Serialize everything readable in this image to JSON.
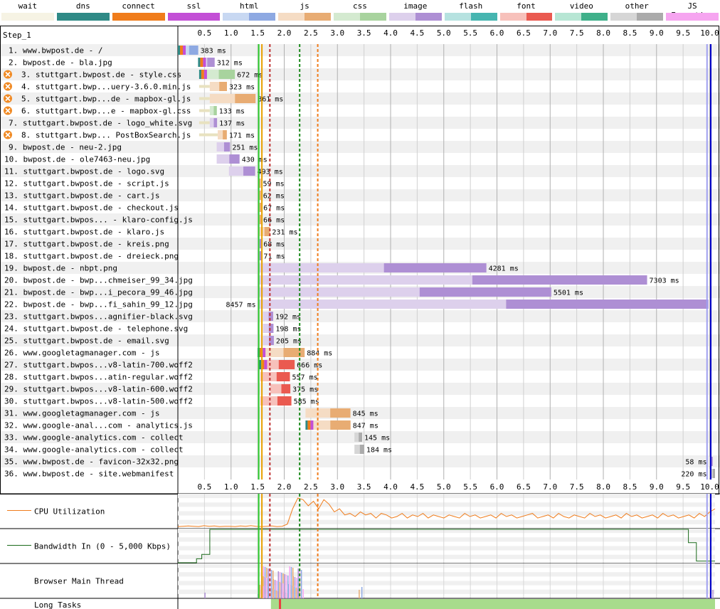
{
  "legend": [
    {
      "label": "wait",
      "light": "#f6f3e4",
      "dark": "#f6f3e4"
    },
    {
      "label": "dns",
      "light": "#2f8a86",
      "dark": "#2f8a86"
    },
    {
      "label": "connect",
      "light": "#f07c1b",
      "dark": "#f07c1b"
    },
    {
      "label": "ssl",
      "light": "#c34fd6",
      "dark": "#c34fd6"
    },
    {
      "label": "html",
      "light": "#c8d8f2",
      "dark": "#8ea9e2"
    },
    {
      "label": "js",
      "light": "#f5dcc4",
      "dark": "#e8ac73"
    },
    {
      "label": "css",
      "light": "#d4ead0",
      "dark": "#a8d39e"
    },
    {
      "label": "image",
      "light": "#ddd0ec",
      "dark": "#ae8fd4"
    },
    {
      "label": "flash",
      "light": "#b6e2e0",
      "dark": "#46b5b0"
    },
    {
      "label": "font",
      "light": "#f7c1bb",
      "dark": "#ea5a50"
    },
    {
      "label": "video",
      "light": "#b7e6d4",
      "dark": "#3fb08a"
    },
    {
      "label": "other",
      "light": "#d6d6d6",
      "dark": "#ababab"
    },
    {
      "label": "JS Execution",
      "light": "#f6a5f0",
      "dark": "#f6a5f0"
    }
  ],
  "chart_data": {
    "type": "waterfall",
    "step_label": "Step_1",
    "x_unit": "seconds",
    "xlim": [
      0,
      10.1
    ],
    "ticks": [
      "0.5",
      "1.0",
      "1.5",
      "2.0",
      "2.5",
      "3.0",
      "3.5",
      "4.0",
      "4.5",
      "5.0",
      "5.5",
      "6.0",
      "6.5",
      "7.0",
      "7.5",
      "8.0",
      "8.5",
      "9.0",
      "9.5",
      "10.0"
    ],
    "duration_suffix": " ms",
    "requests": [
      {
        "label": "1. www.bwpost.de - /",
        "type": "html",
        "start": 0.0,
        "wait": 0.0,
        "dur": 383,
        "warn": false
      },
      {
        "label": "2. bwpost.de - bla.jpg",
        "type": "image",
        "start": 0.38,
        "wait": 0.0,
        "dur": 312,
        "warn": false
      },
      {
        "label": "3. stuttgart.bwpost.de - style.css",
        "type": "css",
        "start": 0.4,
        "wait": 0.0,
        "dur": 672,
        "warn": true
      },
      {
        "label": "4. stuttgart.bwp...uery-3.6.0.min.js",
        "type": "js",
        "start": 0.4,
        "wait": 0.2,
        "dur": 323,
        "warn": true
      },
      {
        "label": "5. stuttgart.bwp...de - mapbox-gl.js",
        "type": "js",
        "start": 0.4,
        "wait": 0.2,
        "dur": 861,
        "warn": true
      },
      {
        "label": "6. stuttgart.bwp...e - mapbox-gl.css",
        "type": "css",
        "start": 0.4,
        "wait": 0.2,
        "dur": 133,
        "warn": true
      },
      {
        "label": "7. stuttgart.bwpost.de - logo_white.svg",
        "type": "image",
        "start": 0.4,
        "wait": 0.2,
        "dur": 137,
        "warn": false
      },
      {
        "label": "8. stuttgart.bwp... PostBoxSearch.js",
        "type": "js",
        "start": 0.4,
        "wait": 0.35,
        "dur": 171,
        "warn": true
      },
      {
        "label": "9. bwpost.de - neu-2.jpg",
        "type": "image",
        "start": 0.73,
        "wait": 0.0,
        "dur": 251,
        "warn": false
      },
      {
        "label": "10. bwpost.de - ole7463-neu.jpg",
        "type": "image",
        "start": 0.73,
        "wait": 0.0,
        "dur": 430,
        "warn": false
      },
      {
        "label": "11. stuttgart.bwpost.de - logo.svg",
        "type": "image",
        "start": 0.96,
        "wait": 0.0,
        "dur": 493,
        "warn": false
      },
      {
        "label": "12. stuttgart.bwpost.de - script.js",
        "type": "js",
        "start": 1.5,
        "wait": 0.0,
        "dur": 59,
        "warn": false
      },
      {
        "label": "13. stuttgart.bwpost.de - cart.js",
        "type": "js",
        "start": 1.5,
        "wait": 0.0,
        "dur": 62,
        "warn": false
      },
      {
        "label": "14. stuttgart.bwpost.de - checkout.js",
        "type": "js",
        "start": 1.5,
        "wait": 0.0,
        "dur": 67,
        "warn": false
      },
      {
        "label": "15. stuttgart.bwpos... - klaro-config.js",
        "type": "js",
        "start": 1.5,
        "wait": 0.0,
        "dur": 66,
        "warn": false
      },
      {
        "label": "16. stuttgart.bwpost.de - klaro.js",
        "type": "js",
        "start": 1.5,
        "wait": 0.0,
        "dur": 231,
        "warn": false
      },
      {
        "label": "17. stuttgart.bwpost.de - kreis.png",
        "type": "image",
        "start": 1.5,
        "wait": 0.0,
        "dur": 68,
        "warn": false
      },
      {
        "label": "18. stuttgart.bwpost.de - dreieck.png",
        "type": "image",
        "start": 1.5,
        "wait": 0.0,
        "dur": 71,
        "warn": false
      },
      {
        "label": "19. bwpost.de - nbpt.png",
        "type": "image",
        "start": 1.52,
        "wait": 0.0,
        "dur": 4281,
        "warn": false
      },
      {
        "label": "20. bwpost.de - bwp...chmeiser_99_34.jpg",
        "type": "image",
        "start": 1.52,
        "wait": 0.0,
        "dur": 7303,
        "warn": false
      },
      {
        "label": "21. bwpost.de - bwp...i_pecora_99_46.jpg",
        "type": "image",
        "start": 1.52,
        "wait": 0.0,
        "dur": 5501,
        "warn": false
      },
      {
        "label": "22. bwpost.de - bwp...fi_sahin_99_12.jpg",
        "type": "image",
        "start": 1.52,
        "wait": 0.0,
        "dur": 8457,
        "warn": false
      },
      {
        "label": "23. stuttgart.bwpos...agnifier-black.svg",
        "type": "image",
        "start": 1.6,
        "wait": 0.0,
        "dur": 192,
        "warn": false
      },
      {
        "label": "24. stuttgart.bwpost.de - telephone.svg",
        "type": "image",
        "start": 1.6,
        "wait": 0.0,
        "dur": 198,
        "warn": false
      },
      {
        "label": "25. stuttgart.bwpost.de - email.svg",
        "type": "image",
        "start": 1.6,
        "wait": 0.0,
        "dur": 205,
        "warn": false
      },
      {
        "label": "26. www.googletagmanager.com - js",
        "type": "js",
        "start": 1.5,
        "wait": 0.0,
        "dur": 884,
        "warn": false
      },
      {
        "label": "27. stuttgart.bwpos...v8-latin-700.woff2",
        "type": "font",
        "start": 1.53,
        "wait": 0.0,
        "dur": 666,
        "warn": false
      },
      {
        "label": "28. stuttgart.bwpos...atin-regular.woff2",
        "type": "font",
        "start": 1.55,
        "wait": 0.0,
        "dur": 557,
        "warn": false
      },
      {
        "label": "29. stuttgart.bwpos...v8-latin-600.woff2",
        "type": "font",
        "start": 1.74,
        "wait": 0.0,
        "dur": 375,
        "warn": false
      },
      {
        "label": "30. stuttgart.bwpos...v8-latin-500.woff2",
        "type": "font",
        "start": 1.55,
        "wait": 0.0,
        "dur": 585,
        "warn": false
      },
      {
        "label": "31. www.googletagmanager.com - js",
        "type": "js",
        "start": 2.4,
        "wait": 0.0,
        "dur": 845,
        "warn": false
      },
      {
        "label": "32. www.google-anal...com - analytics.js",
        "type": "js",
        "start": 2.4,
        "wait": 0.0,
        "dur": 847,
        "warn": false
      },
      {
        "label": "33. www.google-analytics.com - collect",
        "type": "other",
        "start": 3.32,
        "wait": 0.0,
        "dur": 145,
        "warn": false
      },
      {
        "label": "34. www.google-analytics.com - collect",
        "type": "other",
        "start": 3.32,
        "wait": 0.0,
        "dur": 184,
        "warn": false
      },
      {
        "label": "35. www.bwpost.de - favicon-32x32.png",
        "type": "image",
        "start": 10.0,
        "wait": 0.0,
        "dur": 58,
        "warn": false
      },
      {
        "label": "36. www.bwpost.de - site.webmanifest",
        "type": "other",
        "start": 10.0,
        "wait": 0.0,
        "dur": 220,
        "warn": false
      }
    ],
    "markers": [
      {
        "t": 1.52,
        "color": "#28c828",
        "dash": false
      },
      {
        "t": 1.58,
        "color": "#e8a000",
        "dash": false
      },
      {
        "t": 1.73,
        "color": "#c03030",
        "dash": true
      },
      {
        "t": 2.29,
        "color": "#1a8a1a",
        "dash": true
      },
      {
        "t": 2.63,
        "color": "#f07c1b",
        "dash": true
      },
      {
        "t": 10.02,
        "color": "#0000c8",
        "dash": false
      },
      {
        "t": 9.95,
        "color": "#a0a0f0",
        "dash": false
      }
    ],
    "cpu": {
      "label": "CPU Utilization",
      "values": [
        2,
        3,
        4,
        3,
        2,
        5,
        3,
        4,
        2,
        3,
        3,
        2,
        4,
        3,
        5,
        3,
        2,
        3,
        4,
        2,
        3,
        10,
        60,
        95,
        90,
        70,
        85,
        60,
        90,
        75,
        50,
        60,
        40,
        45,
        35,
        50,
        40,
        45,
        30,
        45,
        40,
        30,
        35,
        45,
        30,
        40,
        35,
        45,
        30,
        40,
        35,
        30,
        40,
        35,
        30,
        45,
        35,
        40,
        30,
        35,
        40,
        30,
        45,
        35,
        40,
        30,
        35,
        40,
        45,
        30,
        35,
        40,
        30,
        45,
        35,
        30,
        40,
        35,
        30,
        45,
        35,
        40,
        30,
        35,
        40,
        30,
        45,
        35,
        40,
        30,
        35,
        40,
        30,
        45,
        35,
        40,
        30,
        35,
        40,
        30,
        45,
        35,
        50,
        60
      ]
    },
    "bandwidth": {
      "label": "Bandwidth In (0 - 5,000 Kbps)",
      "values": [
        [
          0,
          0
        ],
        [
          0.35,
          0
        ],
        [
          0.35,
          0.12
        ],
        [
          0.45,
          0.12
        ],
        [
          0.45,
          0.25
        ],
        [
          0.6,
          0.25
        ],
        [
          0.6,
          1.0
        ],
        [
          9.6,
          1.0
        ],
        [
          9.6,
          0.6
        ],
        [
          9.75,
          0.6
        ],
        [
          9.75,
          0.05
        ],
        [
          10.1,
          0.05
        ]
      ]
    },
    "main_thread": {
      "label": "Browser Main Thread"
    },
    "long_tasks": {
      "label": "Long Tasks",
      "green_start": 1.75,
      "green_end": 10.1,
      "red_at": 1.9
    }
  }
}
